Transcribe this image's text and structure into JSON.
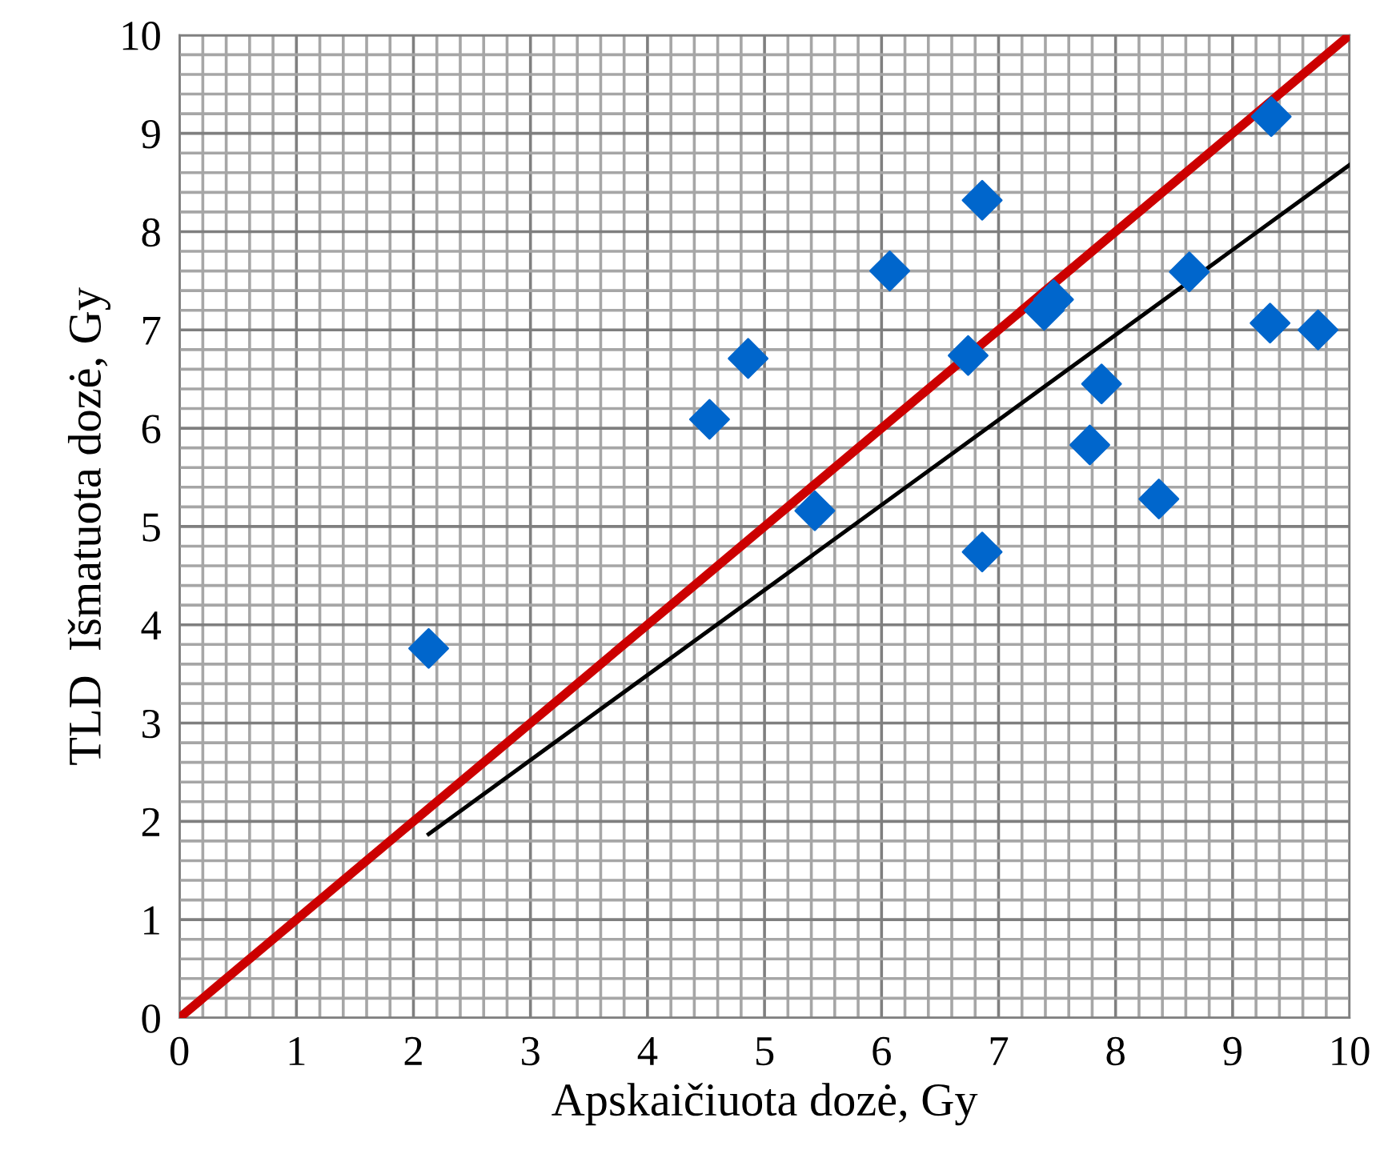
{
  "chart_data": {
    "type": "scatter",
    "xlabel": "Apskaičiuota dozė, Gy",
    "ylabel": "TLD  Išmatuota dozė, Gy",
    "xlim": [
      0,
      10
    ],
    "ylim": [
      0,
      10
    ],
    "xticks": [
      0,
      1,
      2,
      3,
      4,
      5,
      6,
      7,
      8,
      9,
      10
    ],
    "yticks": [
      0,
      1,
      2,
      3,
      4,
      5,
      6,
      7,
      8,
      9,
      10
    ],
    "grid": true,
    "legend": false,
    "series": [
      {
        "color": "#0066cc",
        "marker": "diamond",
        "x": [
          2.13,
          4.53,
          4.86,
          5.43,
          6.07,
          6.74,
          6.86,
          6.86,
          7.39,
          7.47,
          7.78,
          7.88,
          8.37,
          8.63,
          9.33,
          9.32,
          9.73
        ],
        "values": [
          3.76,
          6.09,
          6.71,
          5.16,
          7.6,
          6.74,
          8.32,
          4.74,
          7.2,
          7.31,
          5.83,
          6.45,
          5.28,
          7.59,
          9.17,
          7.07,
          7.0
        ]
      },
      {
        "type": "line",
        "color": "#cc0000",
        "marker": "none",
        "x": [
          0,
          10
        ],
        "values": [
          0,
          10
        ]
      },
      {
        "type": "line",
        "color": "#000000",
        "marker": "none",
        "x": [
          2.13,
          10
        ],
        "values": [
          1.87,
          8.68
        ]
      }
    ]
  }
}
